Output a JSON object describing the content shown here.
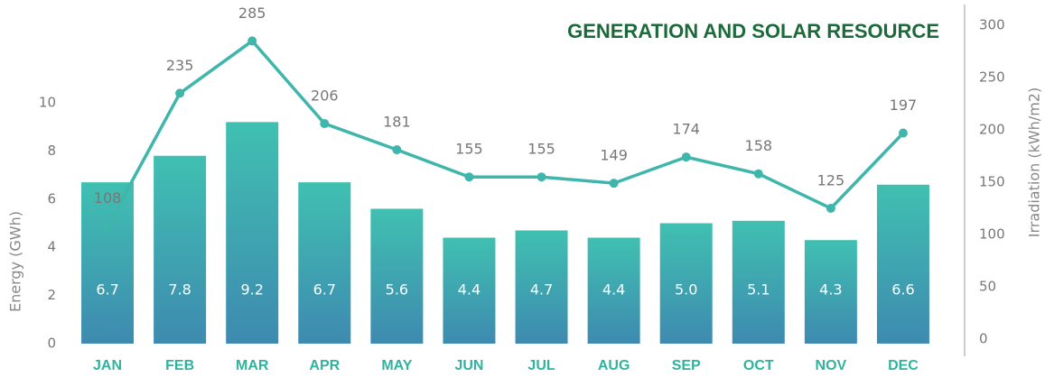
{
  "chart_data": {
    "type": "combo",
    "title": "GENERATION AND SOLAR RESOURCE",
    "categories": [
      "JAN",
      "FEB",
      "MAR",
      "APR",
      "MAY",
      "JUN",
      "JUL",
      "AUG",
      "SEP",
      "OCT",
      "NOV",
      "DEC"
    ],
    "series": [
      {
        "type": "bar",
        "colors": [
          "#40c0b1",
          "#3e8ab0"
        ],
        "values": [
          6.7,
          7.8,
          9.2,
          6.7,
          5.6,
          4.4,
          4.7,
          4.4,
          5.0,
          5.1,
          4.3,
          6.6
        ],
        "value_labels": [
          "6.7",
          "7.8",
          "9.2",
          "6.7",
          "5.6",
          "4.4",
          "4.7",
          "4.4",
          "5.0",
          "5.1",
          "4.3",
          "6.6"
        ]
      },
      {
        "type": "line",
        "axis": "y2",
        "color": "#3fb6ab",
        "values": [
          108,
          235,
          285,
          206,
          181,
          155,
          155,
          149,
          174,
          158,
          125,
          197
        ]
      }
    ],
    "ylabel": "Energy (GWh)",
    "y2label": "Irradiation (kWh/m2)",
    "ylim": [
      0,
      10
    ],
    "yticks": [
      0,
      2,
      4,
      6,
      8,
      10
    ],
    "y2lim": [
      0,
      300
    ],
    "y2ticks": [
      0,
      50,
      100,
      150,
      200,
      250,
      300
    ]
  }
}
